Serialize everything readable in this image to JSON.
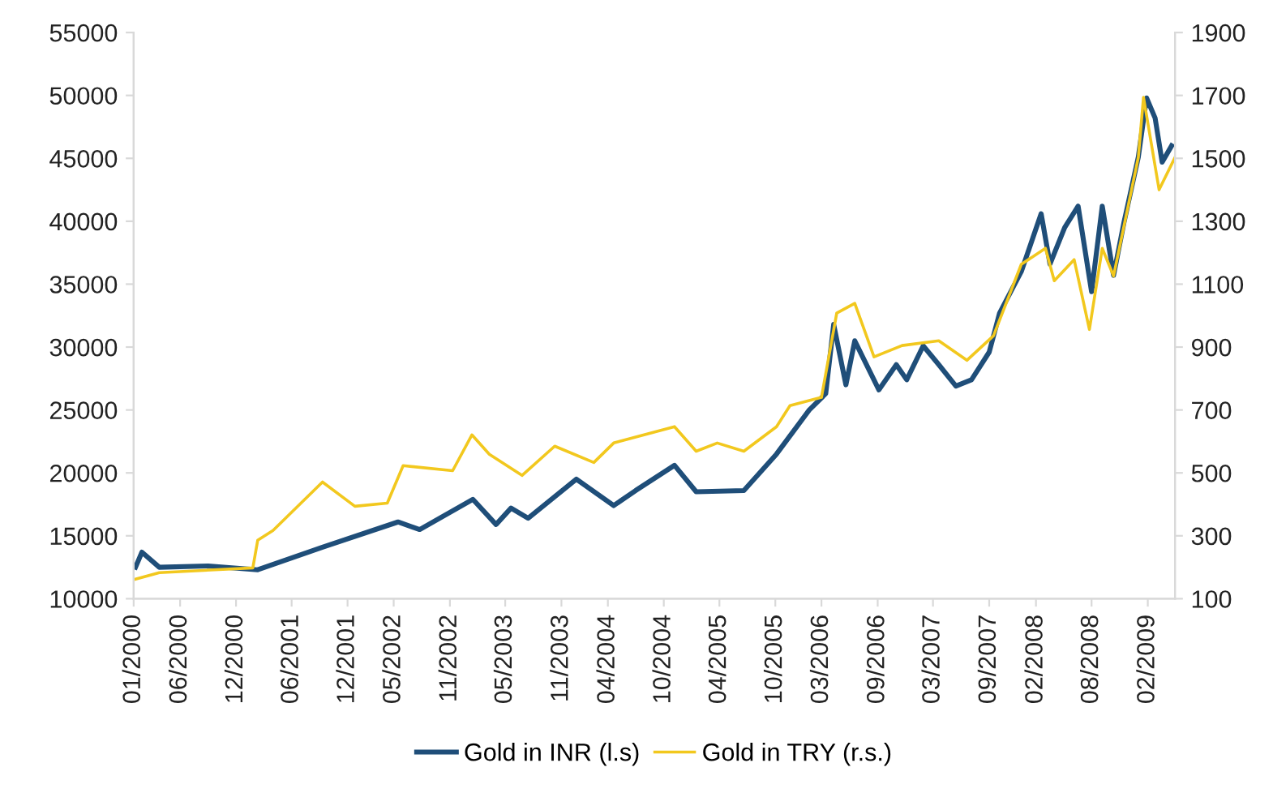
{
  "chart_data": {
    "type": "line",
    "xlim": [
      "2000-01-01",
      "2009-05-01"
    ],
    "xticks": [
      {
        "value": "2000-01-01",
        "label": "01/2000"
      },
      {
        "value": "2000-06-01",
        "label": "06/2000"
      },
      {
        "value": "2000-12-01",
        "label": "12/2000"
      },
      {
        "value": "2001-06-01",
        "label": "06/2001"
      },
      {
        "value": "2001-12-01",
        "label": "12/2001"
      },
      {
        "value": "2002-05-01",
        "label": "05/2002"
      },
      {
        "value": "2002-11-01",
        "label": "11/2002"
      },
      {
        "value": "2003-05-01",
        "label": "05/2003"
      },
      {
        "value": "2003-11-01",
        "label": "11/2003"
      },
      {
        "value": "2004-04-01",
        "label": "04/2004"
      },
      {
        "value": "2004-10-01",
        "label": "10/2004"
      },
      {
        "value": "2005-04-01",
        "label": "04/2005"
      },
      {
        "value": "2005-10-01",
        "label": "10/2005"
      },
      {
        "value": "2006-03-01",
        "label": "03/2006"
      },
      {
        "value": "2006-09-01",
        "label": "09/2006"
      },
      {
        "value": "2007-03-01",
        "label": "03/2007"
      },
      {
        "value": "2007-09-01",
        "label": "09/2007"
      },
      {
        "value": "2008-02-01",
        "label": "02/2008"
      },
      {
        "value": "2008-08-01",
        "label": "08/2008"
      },
      {
        "value": "2009-02-01",
        "label": "02/2009"
      }
    ],
    "ylim": [
      10000,
      55000
    ],
    "yticks": [
      10000,
      15000,
      20000,
      25000,
      30000,
      35000,
      40000,
      45000,
      50000,
      55000
    ],
    "y2lim": [
      100,
      1900
    ],
    "y2ticks": [
      100,
      300,
      500,
      700,
      900,
      1100,
      1300,
      1500,
      1700,
      1900
    ],
    "grid": false,
    "legend": "bottom",
    "line_style": "solid",
    "marker": "none",
    "series": [
      {
        "name": "Gold in INR (l.s)",
        "color": "#1f4e79",
        "x": [
          "2000-01-07",
          "2000-01-28",
          "2000-03-25",
          "2000-09-01",
          "2001-02-10",
          "2001-09-10",
          "2002-05-15",
          "2002-07-25",
          "2003-01-15",
          "2003-04-01",
          "2003-05-20",
          "2003-07-15",
          "2003-12-20",
          "2004-04-20",
          "2004-07-01",
          "2004-11-05",
          "2005-01-15",
          "2005-06-20",
          "2005-10-05",
          "2006-01-20",
          "2006-03-15",
          "2006-04-10",
          "2006-05-20",
          "2006-06-18",
          "2006-09-05",
          "2006-11-01",
          "2006-12-05",
          "2007-01-28",
          "2007-03-20",
          "2007-05-15",
          "2007-07-05",
          "2007-09-01",
          "2007-10-05",
          "2007-12-15",
          "2008-02-18",
          "2008-03-18",
          "2008-05-05",
          "2008-06-18",
          "2008-08-01",
          "2008-09-05",
          "2008-10-12",
          "2008-11-15",
          "2009-01-01",
          "2009-01-28",
          "2009-02-25",
          "2009-03-20",
          "2009-04-20"
        ],
        "values": [
          12500,
          13700,
          12500,
          12600,
          12300,
          14100,
          16100,
          15500,
          17900,
          15900,
          17200,
          16400,
          19500,
          17400,
          18600,
          20600,
          18500,
          18600,
          21500,
          25000,
          26300,
          31800,
          27000,
          30500,
          26600,
          28600,
          27400,
          30100,
          28600,
          26900,
          27400,
          29600,
          32700,
          36000,
          40600,
          36600,
          39500,
          41200,
          34400,
          41200,
          35700,
          39900,
          45100,
          49800,
          48200,
          44700,
          46000
        ]
      },
      {
        "name": "Gold in TRY (r.s.)",
        "color": "#f2c81e",
        "axis": "y2",
        "x": [
          "2000-01-07",
          "2000-03-25",
          "2001-01-25",
          "2001-02-10",
          "2001-04-01",
          "2001-09-10",
          "2001-12-25",
          "2002-04-10",
          "2002-06-01",
          "2002-11-10",
          "2003-01-12",
          "2003-03-10",
          "2003-06-25",
          "2003-10-10",
          "2004-02-15",
          "2004-04-20",
          "2004-11-05",
          "2005-01-15",
          "2005-03-25",
          "2005-06-20",
          "2005-10-05",
          "2005-11-18",
          "2006-03-01",
          "2006-04-20",
          "2006-06-18",
          "2006-08-20",
          "2006-11-20",
          "2007-03-20",
          "2007-06-20",
          "2007-09-15",
          "2007-12-15",
          "2008-03-03",
          "2008-04-01",
          "2008-06-05",
          "2008-07-25",
          "2008-09-05",
          "2008-10-12",
          "2009-01-01",
          "2009-01-18",
          "2009-03-10",
          "2009-05-01"
        ],
        "values": [
          162,
          183,
          198,
          286,
          317,
          471,
          394,
          404,
          523,
          507,
          621,
          559,
          492,
          585,
          533,
          595,
          647,
          569,
          595,
          569,
          647,
          714,
          740,
          1008,
          1039,
          869,
          905,
          920,
          858,
          936,
          1163,
          1214,
          1111,
          1178,
          956,
          1214,
          1126,
          1503,
          1694,
          1400,
          1503
        ]
      }
    ]
  }
}
